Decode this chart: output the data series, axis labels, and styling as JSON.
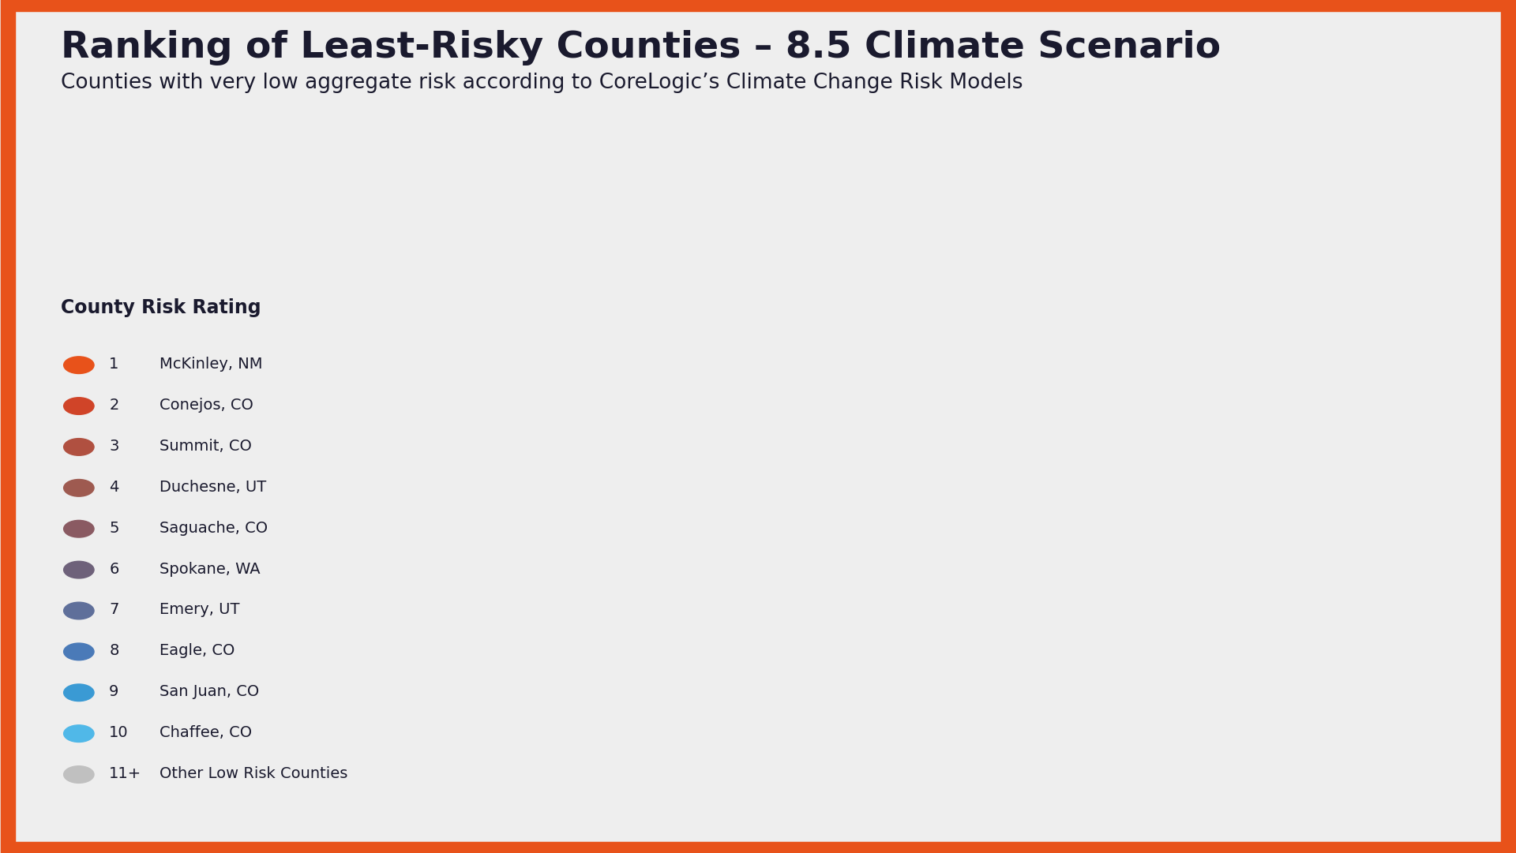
{
  "title": "Ranking of Least-Risky Counties – 8.5 Climate Scenario",
  "subtitle": "Counties with very low aggregate risk according to CoreLogic’s Climate Change Risk Models",
  "title_color": "#1a1a2e",
  "background_color": "#eeeeee",
  "border_color": "#e8521a",
  "border_width": 14,
  "legend_title": "County Risk Rating",
  "legend_items": [
    {
      "rank": "1",
      "label": "McKinley, NM",
      "color": "#e8521a"
    },
    {
      "rank": "2",
      "label": "Conejos, CO",
      "color": "#d04428"
    },
    {
      "rank": "3",
      "label": "Summit, CO",
      "color": "#b05040"
    },
    {
      "rank": "4",
      "label": "Duchesne, UT",
      "color": "#9e5a50"
    },
    {
      "rank": "5",
      "label": "Saguache, CO",
      "color": "#8a5a62"
    },
    {
      "rank": "6",
      "label": "Spokane, WA",
      "color": "#6e617a"
    },
    {
      "rank": "7",
      "label": "Emery, UT",
      "color": "#5f6f9a"
    },
    {
      "rank": "8",
      "label": "Eagle, CO",
      "color": "#4a7ab8"
    },
    {
      "rank": "9",
      "label": "San Juan, CO",
      "color": "#3a9ad4"
    },
    {
      "rank": "10",
      "label": "Chaffee, CO",
      "color": "#50b8e8"
    },
    {
      "rank": "11+",
      "label": "Other Low Risk Counties",
      "color": "#c0c0c0"
    }
  ],
  "county_fips_colors": {
    "35031": "#e8521a",
    "08021": "#d04428",
    "08117": "#b05040",
    "49013": "#9e5a50",
    "08109": "#8a5a62",
    "53063": "#6e617a",
    "49015": "#5f6f9a",
    "08037": "#4a7ab8",
    "08111": "#3a9ad4",
    "08015": "#50b8e8"
  },
  "map_face": "#d4d4d8",
  "map_edge": "#ffffff",
  "map_extent": [
    -130,
    -65,
    22,
    52
  ]
}
